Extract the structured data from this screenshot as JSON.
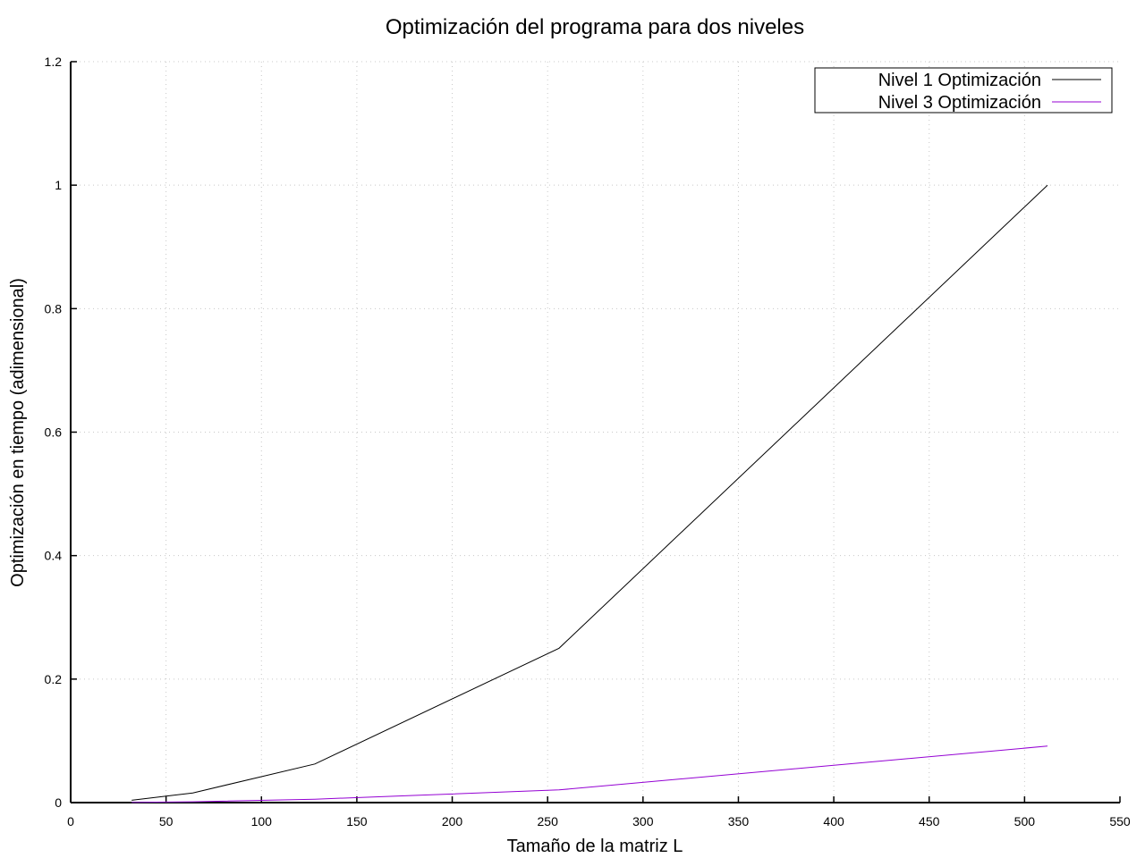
{
  "chart_data": {
    "type": "line",
    "title": "Optimización del programa para dos niveles",
    "xlabel": "Tamaño de la matriz L",
    "ylabel": "Optimización en tiempo (adimensional)",
    "xlim": [
      0,
      550
    ],
    "ylim": [
      0,
      1.2
    ],
    "xticks": [
      "0",
      "50",
      "100",
      "150",
      "200",
      "250",
      "300",
      "350",
      "400",
      "450",
      "500",
      "550"
    ],
    "yticks": [
      "0",
      "0.2",
      "0.4",
      "0.6",
      "0.8",
      "1",
      "1.2"
    ],
    "grid": true,
    "legend_position": "top-right",
    "series": [
      {
        "name": "Nivel 1 Optimización",
        "color": "#000000",
        "x": [
          32,
          64,
          128,
          256,
          512
        ],
        "y": [
          0.0037,
          0.0156,
          0.0625,
          0.25,
          1.0
        ]
      },
      {
        "name": "Nivel 3 Optimización",
        "color": "#9400d3",
        "x": [
          32,
          64,
          128,
          256,
          512
        ],
        "y": [
          0.0003,
          0.0013,
          0.0055,
          0.0205,
          0.0915
        ]
      }
    ]
  }
}
